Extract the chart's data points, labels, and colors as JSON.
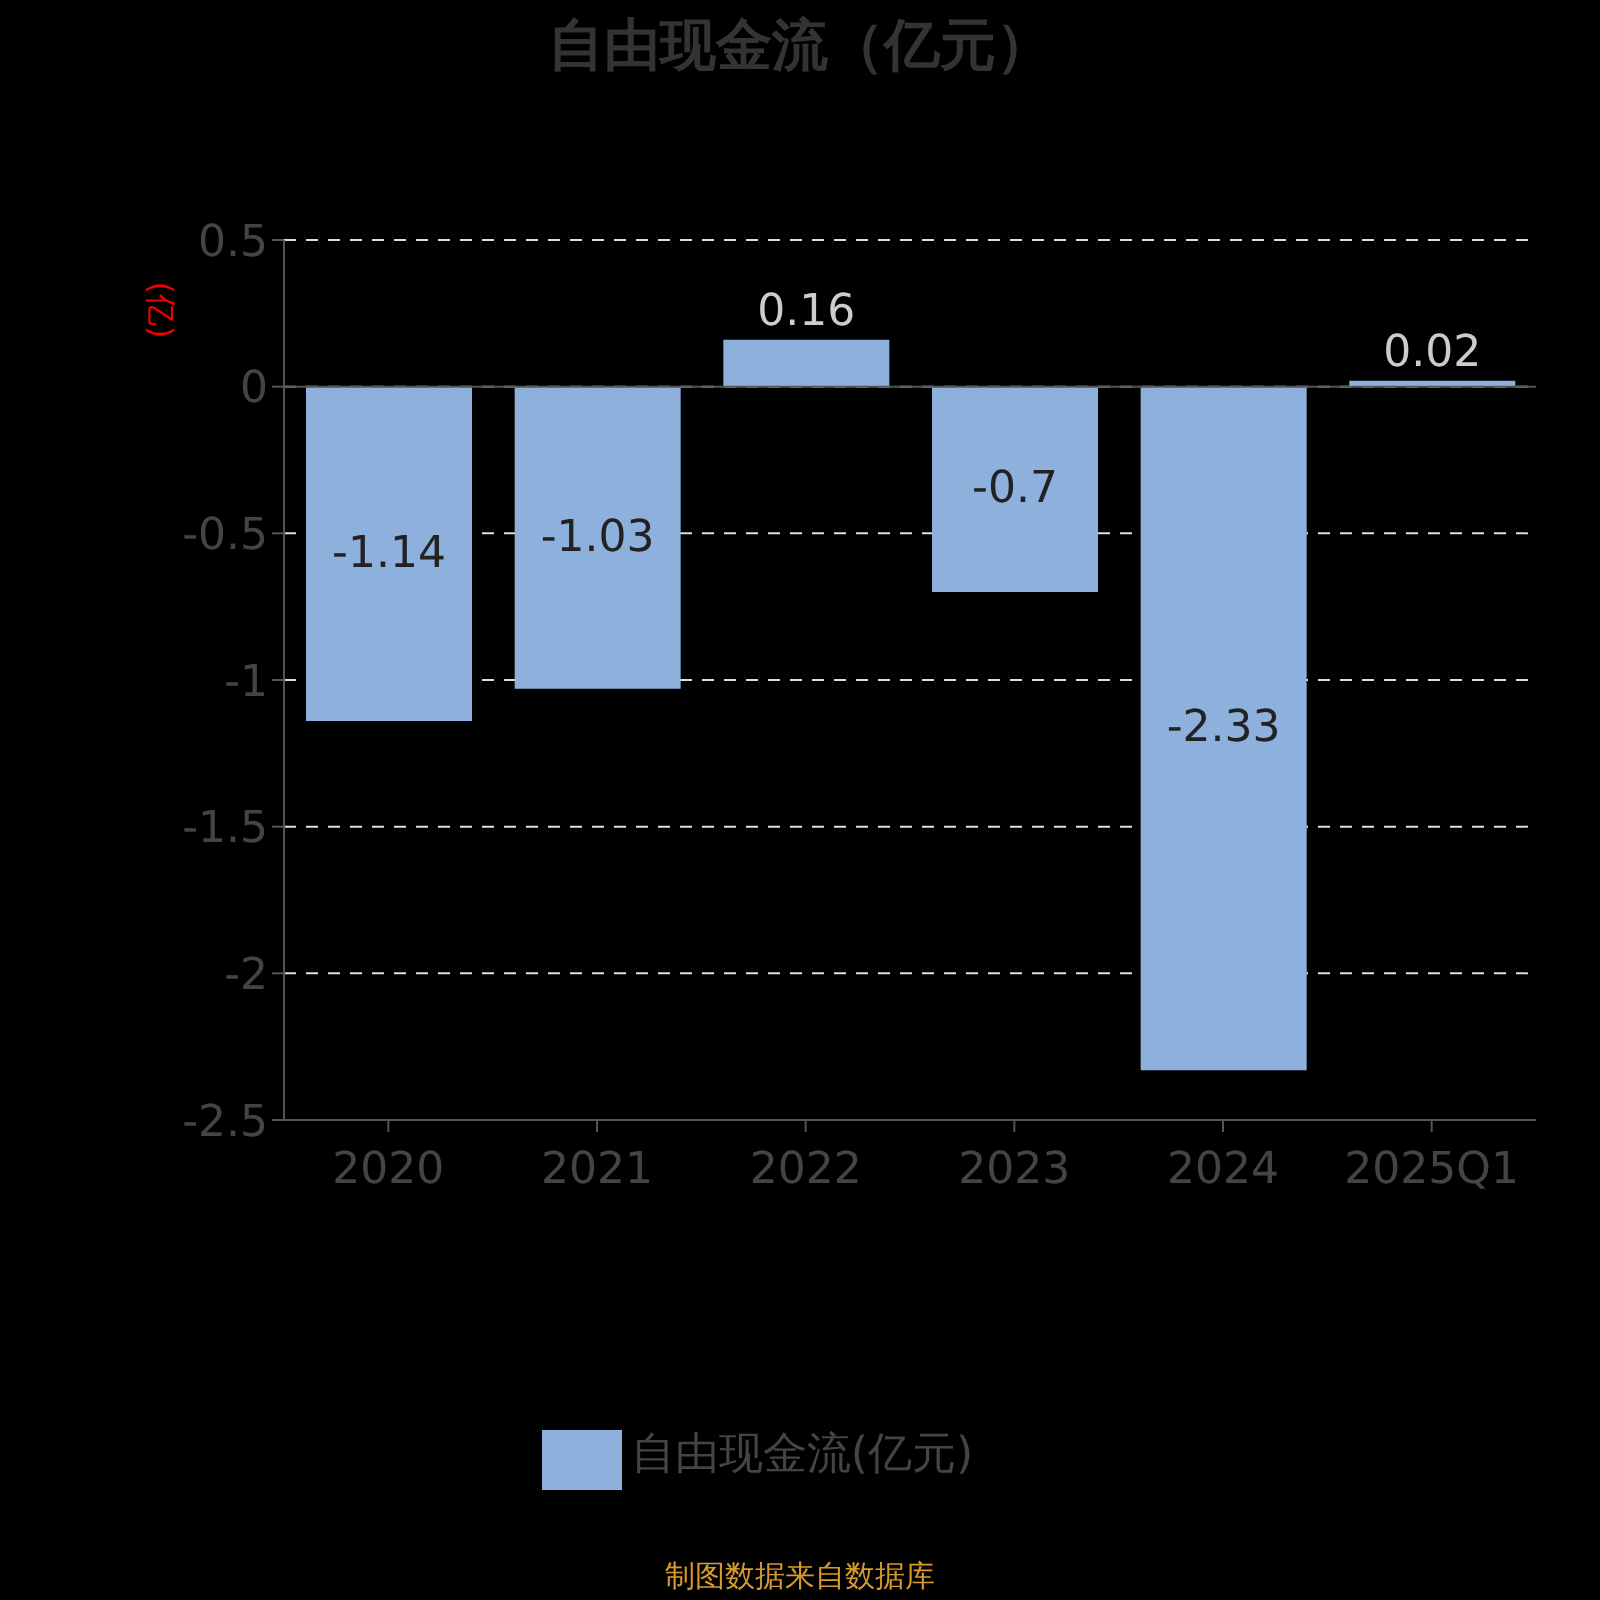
{
  "chart_data": {
    "type": "bar",
    "title": "自由现金流（亿元）",
    "ylabel": "(亿)",
    "categories": [
      "2020",
      "2021",
      "2022",
      "2023",
      "2024",
      "2025Q1"
    ],
    "series": [
      {
        "name": "自由现金流(亿元)",
        "color": "#8eb0dd",
        "values": [
          -1.14,
          -1.03,
          0.16,
          -0.7,
          -2.33,
          0.02
        ]
      }
    ],
    "ylim": [
      -2.5,
      0.5
    ],
    "yticks": [
      -2.5,
      -2,
      -1.5,
      -1,
      -0.5,
      0,
      0.5
    ],
    "grid": "y",
    "legend": "bottom",
    "data_labels": true,
    "annotations": [
      "制图数据来自数据库"
    ]
  }
}
